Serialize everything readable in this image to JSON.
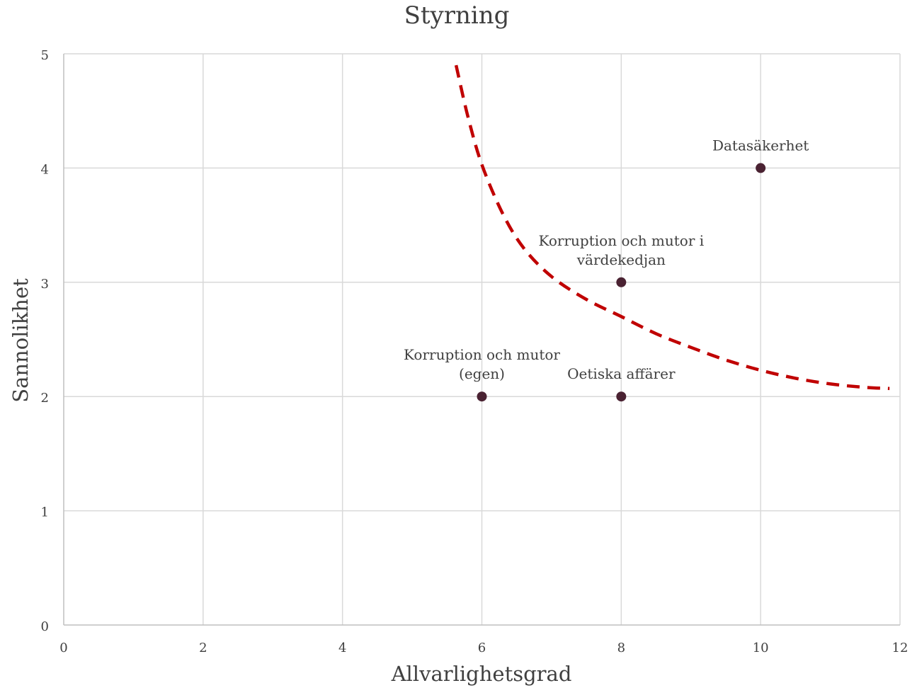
{
  "chart_data": {
    "type": "scatter",
    "title": "Styrning",
    "xlabel": "Allvarlighetsgrad",
    "ylabel": "Sannolikhet",
    "xlim": [
      0,
      12
    ],
    "ylim": [
      0,
      5
    ],
    "xticks": [
      0,
      2,
      4,
      6,
      8,
      10,
      12
    ],
    "yticks": [
      0,
      1,
      2,
      3,
      4,
      5
    ],
    "grid": true,
    "legend": "none",
    "point_color": "#4a2232",
    "points": [
      {
        "x": 10,
        "y": 4,
        "label": [
          "Datasäkerhet"
        ]
      },
      {
        "x": 8,
        "y": 3,
        "label": [
          "Korruption och mutor i",
          "värdekedjan"
        ]
      },
      {
        "x": 6,
        "y": 2,
        "label": [
          "Korruption och mutor",
          "(egen)"
        ]
      },
      {
        "x": 8,
        "y": 2,
        "label": [
          "Oetiska affärer"
        ]
      }
    ],
    "threshold_curve": {
      "style": "dashed",
      "color": "#c00000",
      "x": [
        5.63,
        5.8,
        6.0,
        6.3,
        6.6,
        7.0,
        7.5,
        8.0,
        8.5,
        9.0,
        9.5,
        10.0,
        10.5,
        11.0,
        11.5,
        11.85
      ],
      "y": [
        4.9,
        4.45,
        4.03,
        3.6,
        3.3,
        3.05,
        2.85,
        2.7,
        2.55,
        2.43,
        2.32,
        2.23,
        2.16,
        2.11,
        2.08,
        2.07
      ]
    }
  }
}
